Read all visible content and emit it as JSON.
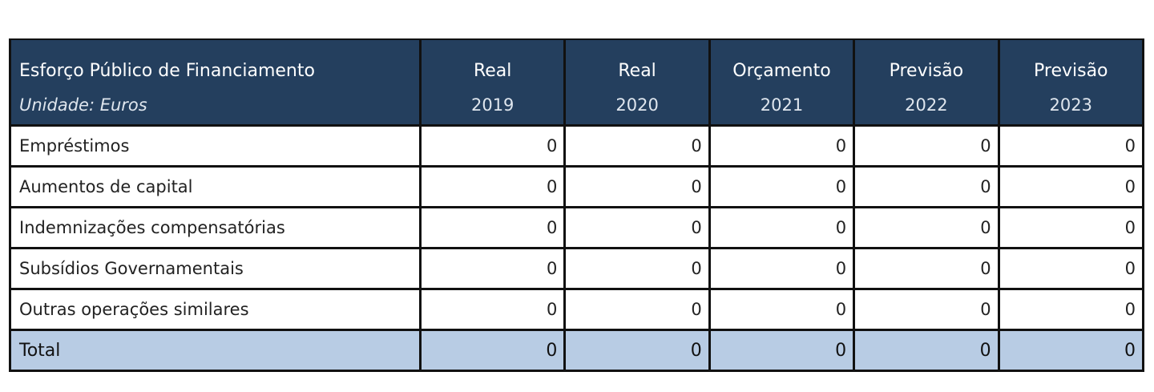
{
  "table": {
    "header_title": "Esforço Público de Financiamento",
    "header_unit": "Unidade: Euros",
    "columns": [
      {
        "label": "Real",
        "year": "2019"
      },
      {
        "label": "Real",
        "year": "2020"
      },
      {
        "label": "Orçamento",
        "year": "2021"
      },
      {
        "label": "Previsão",
        "year": "2022"
      },
      {
        "label": "Previsão",
        "year": "2023"
      }
    ],
    "rows": [
      {
        "label": "Empréstimos",
        "values": [
          "0",
          "0",
          "0",
          "0",
          "0"
        ]
      },
      {
        "label": "Aumentos de capital",
        "values": [
          "0",
          "0",
          "0",
          "0",
          "0"
        ]
      },
      {
        "label": "Indemnizações compensatórias",
        "values": [
          "0",
          "0",
          "0",
          "0",
          "0"
        ]
      },
      {
        "label": "Subsídios Governamentais",
        "values": [
          "0",
          "0",
          "0",
          "0",
          "0"
        ]
      },
      {
        "label": "Outras operações similares",
        "values": [
          "0",
          "0",
          "0",
          "0",
          "0"
        ]
      }
    ],
    "total": {
      "label": "Total",
      "values": [
        "0",
        "0",
        "0",
        "0",
        "0"
      ]
    }
  },
  "colors": {
    "header_bg": "#243f5e",
    "total_bg": "#b8cce4",
    "border": "#111111"
  }
}
